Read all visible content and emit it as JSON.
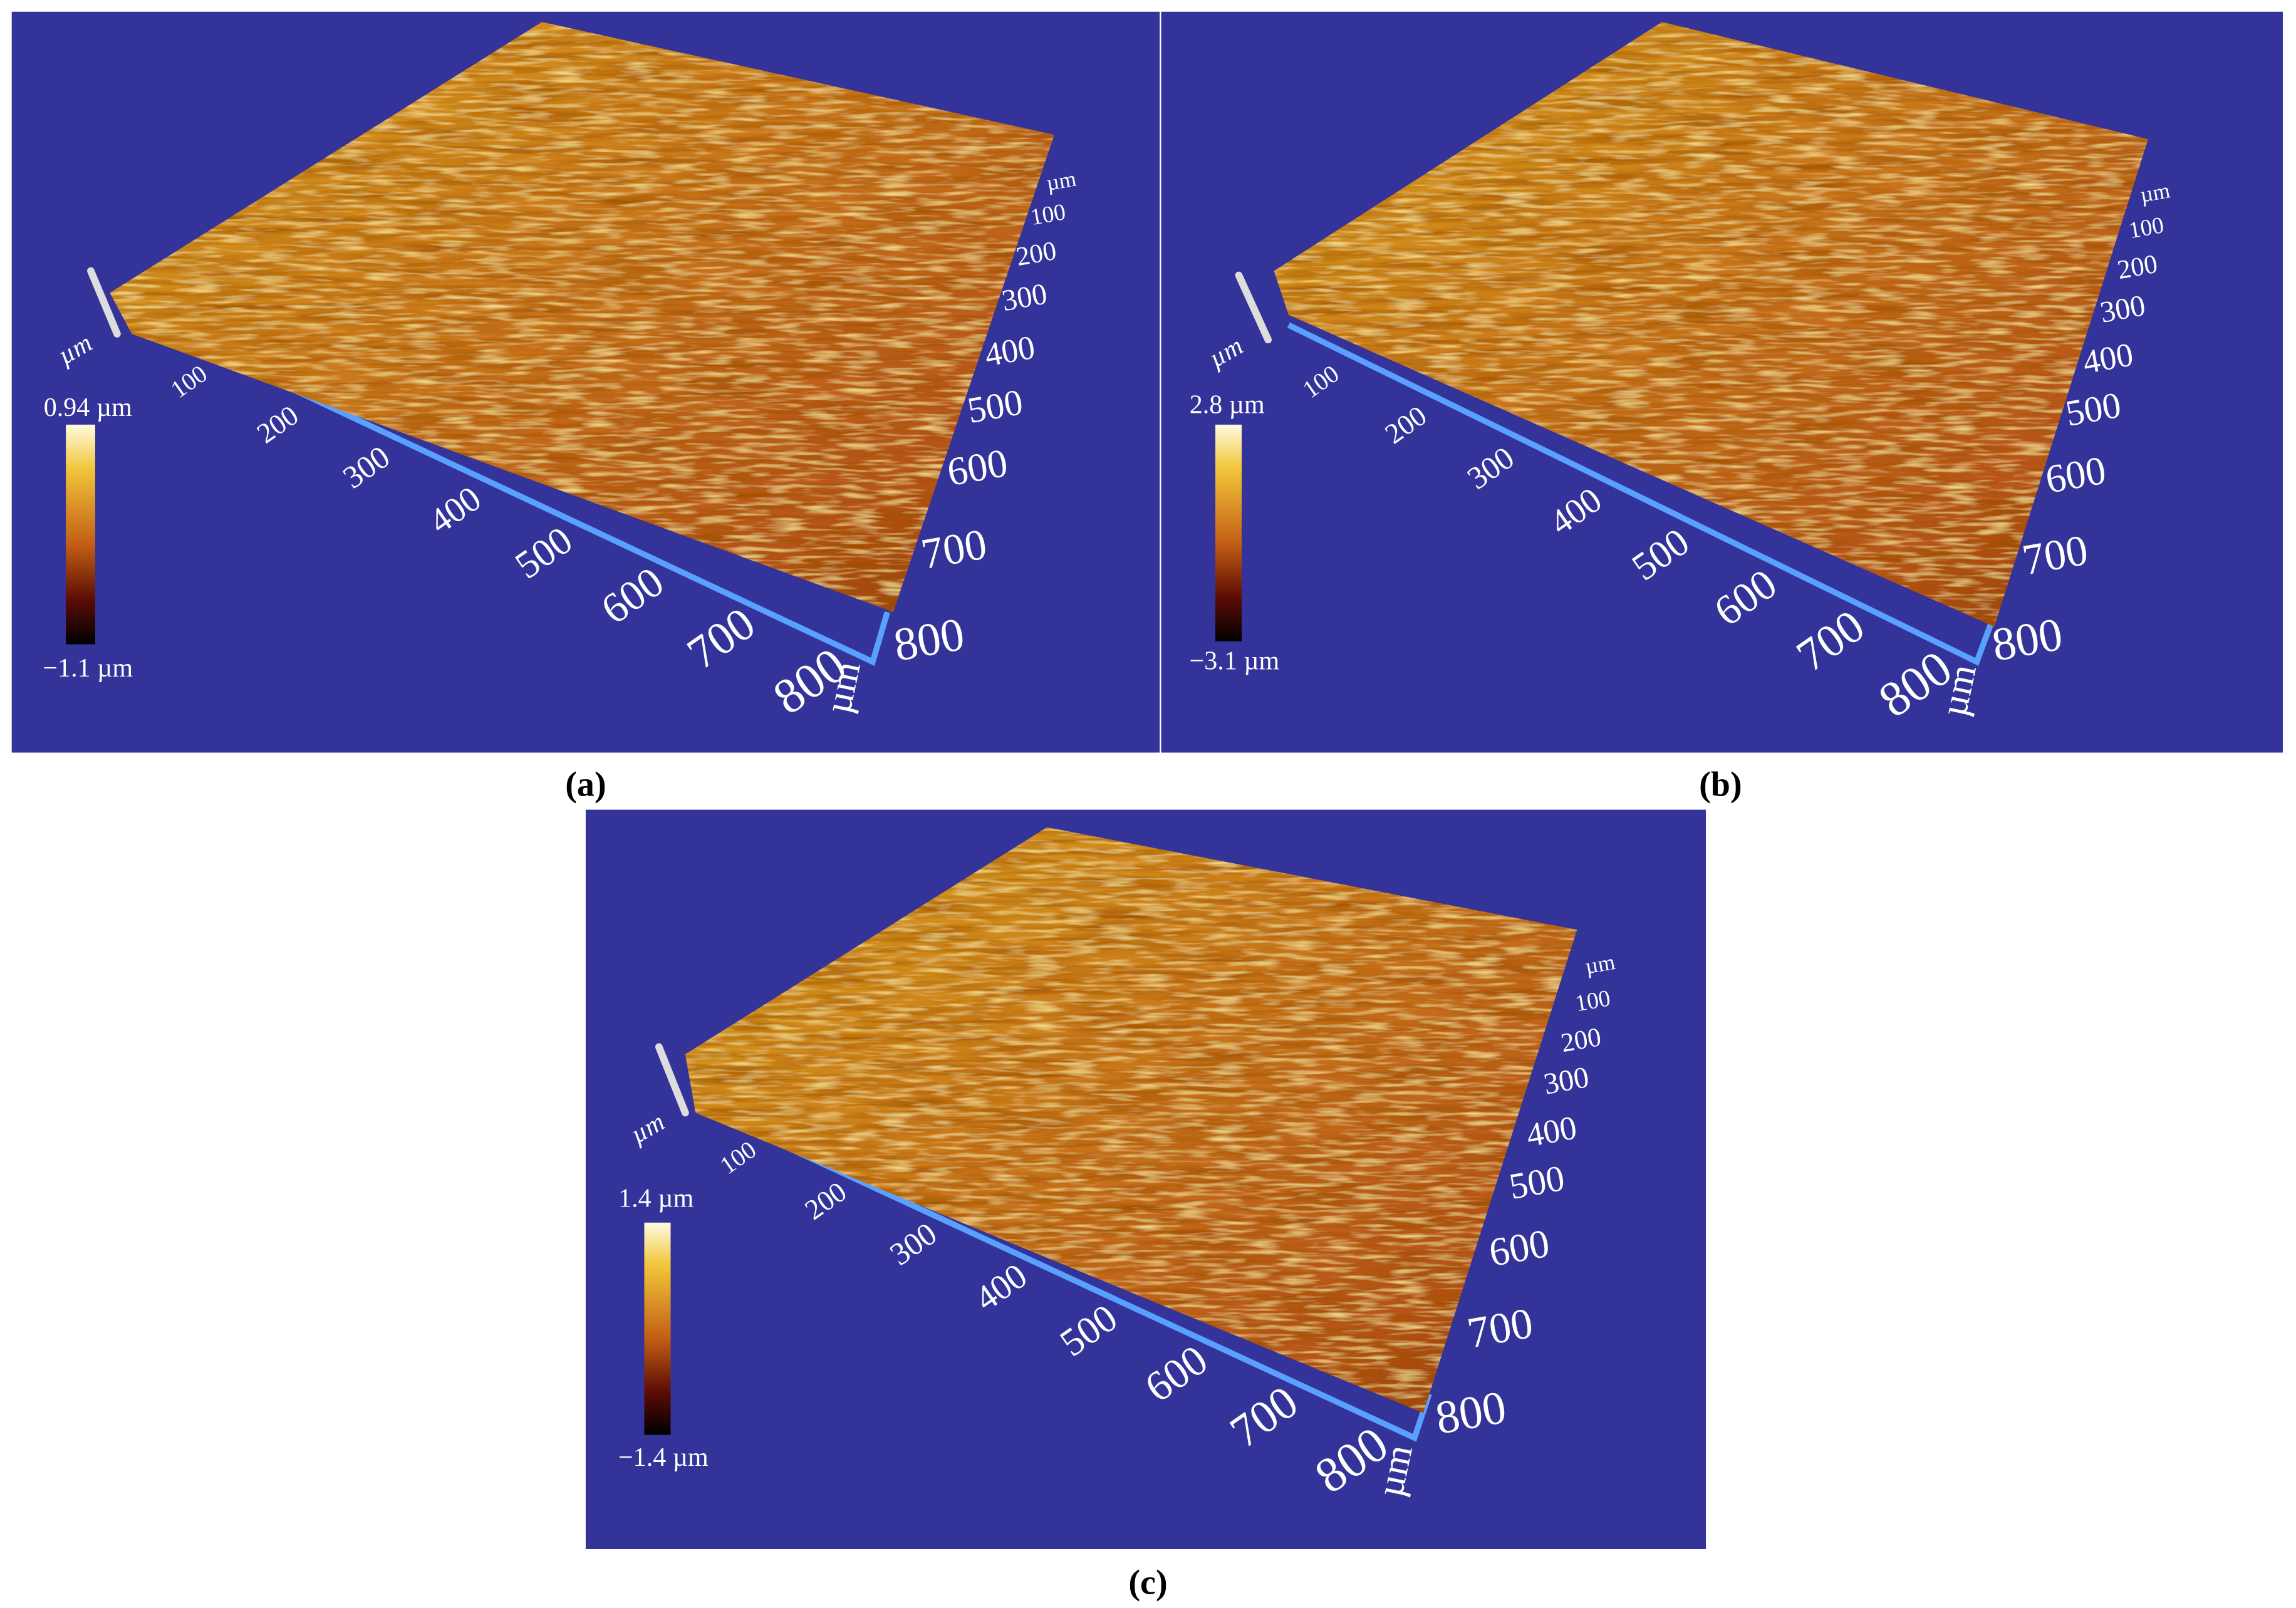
{
  "panels": [
    {
      "label": "(a)",
      "colorbar_max": "0.94 µm",
      "colorbar_min": "−1.1 µm",
      "z_unit": "µm",
      "x_ticks": [
        "100",
        "200",
        "300",
        "400",
        "500",
        "600",
        "700",
        "800"
      ],
      "x_unit": "µm",
      "y_unit": "µm",
      "y_ticks": [
        "100",
        "200",
        "300",
        "400",
        "500",
        "600",
        "700",
        "800"
      ]
    },
    {
      "label": "(b)",
      "colorbar_max": "2.8 µm",
      "colorbar_min": "−3.1 µm",
      "z_unit": "µm",
      "x_ticks": [
        "100",
        "200",
        "300",
        "400",
        "500",
        "600",
        "700",
        "800"
      ],
      "x_unit": "µm",
      "y_unit": "µm",
      "y_ticks": [
        "100",
        "200",
        "300",
        "400",
        "500",
        "600",
        "700",
        "800"
      ]
    },
    {
      "label": "(c)",
      "colorbar_max": "1.4 µm",
      "colorbar_min": "−1.4 µm",
      "z_unit": "µm",
      "x_ticks": [
        "100",
        "200",
        "300",
        "400",
        "500",
        "600",
        "700",
        "800"
      ],
      "x_unit": "µm",
      "y_unit": "µm",
      "y_ticks": [
        "100",
        "200",
        "300",
        "400",
        "500",
        "600",
        "700",
        "800"
      ]
    }
  ]
}
